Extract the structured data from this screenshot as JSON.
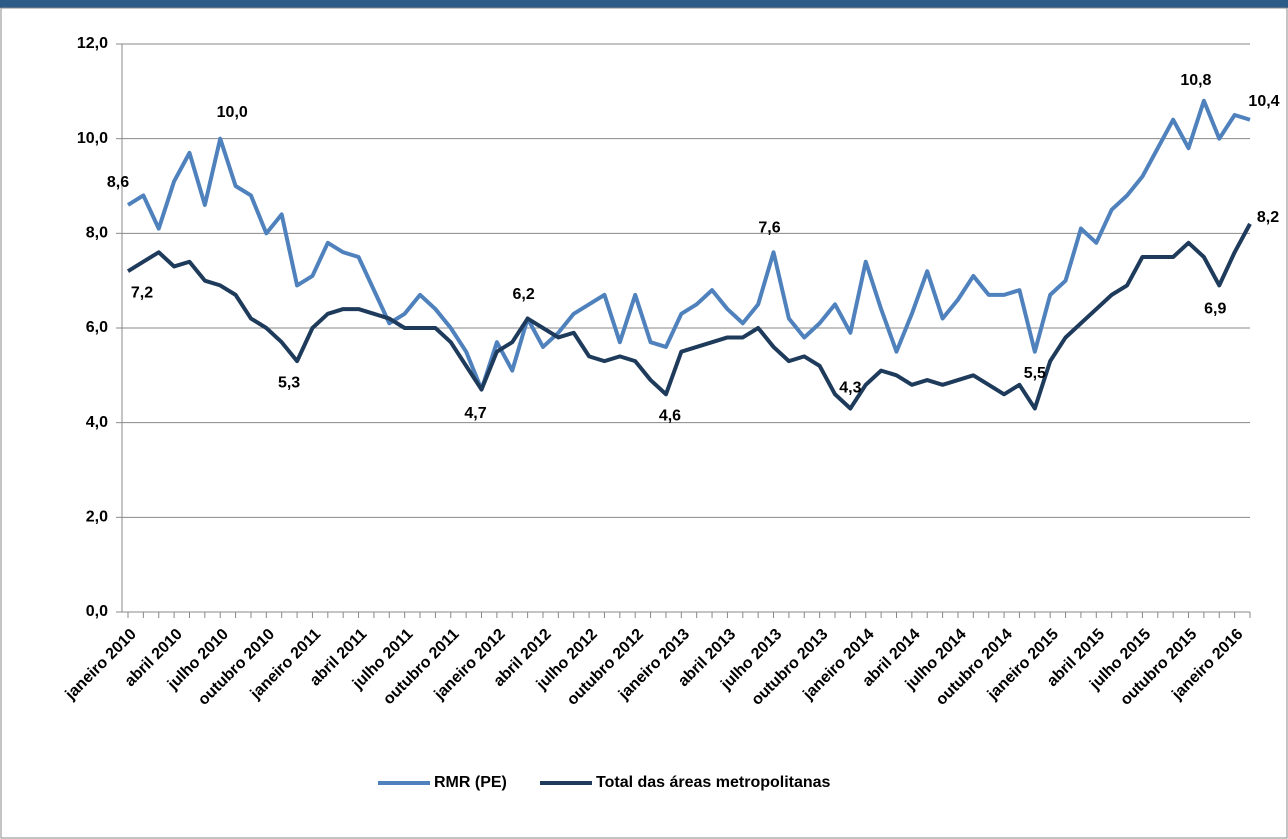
{
  "chart_data": {
    "type": "line",
    "categories": [
      "janeiro 2010",
      null,
      null,
      "abril 2010",
      null,
      null,
      "julho 2010",
      null,
      null,
      "outubro 2010",
      null,
      null,
      "janeiro 2011",
      null,
      null,
      "abril 2011",
      null,
      null,
      "julho 2011",
      null,
      null,
      "outubro 2011",
      null,
      null,
      "janeiro 2012",
      null,
      null,
      "abril 2012",
      null,
      null,
      "julho 2012",
      null,
      null,
      "outubro 2012",
      null,
      null,
      "janeiro 2013",
      null,
      null,
      "abril 2013",
      null,
      null,
      "julho 2013",
      null,
      null,
      "outubro 2013",
      null,
      null,
      "janeiro 2014",
      null,
      null,
      "abril 2014",
      null,
      null,
      "julho 2014",
      null,
      null,
      "outubro 2014",
      null,
      null,
      "janeiro 2015",
      null,
      null,
      "abril 2015",
      null,
      null,
      "julho 2015",
      null,
      null,
      "outubro 2015",
      null,
      null,
      "janeiro 2016",
      null
    ],
    "series": [
      {
        "name": "RMR (PE)",
        "color": "#4f81bd",
        "values": [
          8.6,
          8.8,
          8.1,
          9.1,
          9.7,
          8.6,
          10.0,
          9.0,
          8.8,
          8.0,
          8.4,
          6.9,
          7.1,
          7.8,
          7.6,
          7.5,
          6.8,
          6.1,
          6.3,
          6.7,
          6.4,
          6.0,
          5.5,
          4.7,
          5.7,
          5.1,
          6.2,
          5.6,
          5.9,
          6.3,
          6.5,
          6.7,
          5.7,
          6.7,
          5.7,
          5.6,
          6.3,
          6.5,
          6.8,
          6.4,
          6.1,
          6.5,
          7.6,
          6.2,
          5.8,
          6.1,
          6.5,
          5.9,
          7.4,
          6.4,
          5.5,
          6.3,
          7.2,
          6.2,
          6.6,
          7.1,
          6.7,
          6.7,
          6.8,
          5.5,
          6.7,
          7.0,
          8.1,
          7.8,
          8.5,
          8.8,
          9.2,
          9.8,
          10.4,
          9.8,
          10.8,
          10.0,
          10.5,
          10.4
        ],
        "value_labels": [
          "8,6",
          null,
          null,
          null,
          null,
          null,
          "10,0",
          null,
          null,
          null,
          null,
          null,
          null,
          null,
          null,
          null,
          null,
          null,
          null,
          null,
          null,
          null,
          null,
          "4,7",
          null,
          null,
          null,
          null,
          null,
          null,
          null,
          null,
          null,
          null,
          null,
          null,
          null,
          null,
          null,
          null,
          null,
          null,
          "7,6",
          null,
          null,
          null,
          null,
          null,
          null,
          null,
          null,
          null,
          null,
          null,
          null,
          null,
          null,
          null,
          null,
          "5,5",
          null,
          null,
          null,
          null,
          null,
          null,
          null,
          null,
          null,
          null,
          "10,8",
          null,
          null,
          "10,4"
        ]
      },
      {
        "name": "Total das áreas metropolitanas",
        "color": "#1f3b5c",
        "values": [
          7.2,
          7.4,
          7.6,
          7.3,
          7.4,
          7.0,
          6.9,
          6.7,
          6.2,
          6.0,
          5.7,
          5.3,
          6.0,
          6.3,
          6.4,
          6.4,
          6.3,
          6.2,
          6.0,
          6.0,
          6.0,
          5.7,
          5.2,
          4.7,
          5.5,
          5.7,
          6.2,
          6.0,
          5.8,
          5.9,
          5.4,
          5.3,
          5.4,
          5.3,
          4.9,
          4.6,
          5.5,
          5.6,
          5.7,
          5.8,
          5.8,
          6.0,
          5.6,
          5.3,
          5.4,
          5.2,
          4.6,
          4.3,
          4.8,
          5.1,
          5.0,
          4.8,
          4.9,
          4.8,
          4.9,
          5.0,
          4.8,
          4.6,
          4.8,
          4.3,
          5.3,
          5.8,
          6.1,
          6.4,
          6.7,
          6.9,
          7.5,
          7.5,
          7.5,
          7.8,
          7.5,
          6.9,
          7.6,
          8.2
        ],
        "value_labels": [
          "7,2",
          null,
          null,
          null,
          null,
          null,
          null,
          null,
          null,
          null,
          null,
          "5,3",
          null,
          null,
          null,
          null,
          null,
          null,
          null,
          null,
          null,
          null,
          null,
          null,
          null,
          null,
          "6,2",
          null,
          null,
          null,
          null,
          null,
          null,
          null,
          null,
          "4,6",
          null,
          null,
          null,
          null,
          null,
          null,
          null,
          null,
          null,
          null,
          null,
          "4,3",
          null,
          null,
          null,
          null,
          null,
          null,
          null,
          null,
          null,
          null,
          null,
          null,
          null,
          null,
          null,
          null,
          null,
          null,
          null,
          null,
          null,
          null,
          null,
          "6,9",
          null,
          "8,2"
        ]
      }
    ],
    "ylim": [
      0,
      12
    ],
    "yticks": [
      {
        "value": 0,
        "label": "0,0"
      },
      {
        "value": 2,
        "label": "2,0"
      },
      {
        "value": 4,
        "label": "4,0"
      },
      {
        "value": 6,
        "label": "6,0"
      },
      {
        "value": 8,
        "label": "8,0"
      },
      {
        "value": 10,
        "label": "10,0"
      },
      {
        "value": 12,
        "label": "12,0"
      }
    ],
    "grid": true,
    "legend": "bottom"
  }
}
